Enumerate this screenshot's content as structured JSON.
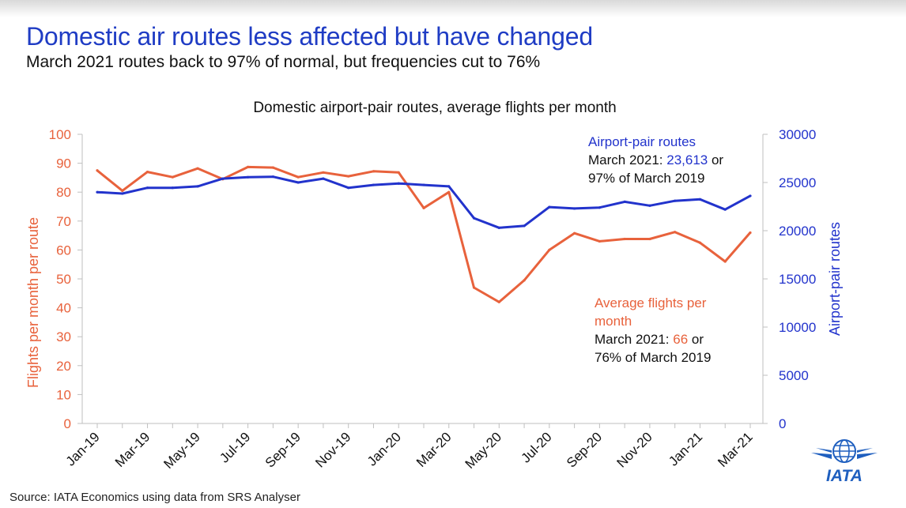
{
  "header": {
    "title": "Domestic air routes less affected but have changed",
    "subtitle": "March 2021 routes back to 97% of normal, but frequencies cut to 76%"
  },
  "footer": {
    "source": "Source: IATA Economics using data from SRS Analyser",
    "logo_text": "IATA"
  },
  "colors": {
    "title": "#1f3cc4",
    "flights": "#e8623c",
    "routes": "#2233cc"
  },
  "chart_data": {
    "type": "line",
    "title": "Domestic airport-pair routes, average flights per month",
    "categories": [
      "Jan-19",
      "Feb-19",
      "Mar-19",
      "Apr-19",
      "May-19",
      "Jun-19",
      "Jul-19",
      "Aug-19",
      "Sep-19",
      "Oct-19",
      "Nov-19",
      "Dec-19",
      "Jan-20",
      "Feb-20",
      "Mar-20",
      "Apr-20",
      "May-20",
      "Jun-20",
      "Jul-20",
      "Aug-20",
      "Sep-20",
      "Oct-20",
      "Nov-20",
      "Dec-20",
      "Jan-21",
      "Feb-21",
      "Mar-21"
    ],
    "tick_labels": [
      "Jan-19",
      "Mar-19",
      "May-19",
      "Jul-19",
      "Sep-19",
      "Nov-19",
      "Jan-20",
      "Mar-20",
      "May-20",
      "Jul-20",
      "Sep-20",
      "Nov-20",
      "Jan-21",
      "Mar-21"
    ],
    "y_left": {
      "label": "Flights per month per route",
      "range": [
        0,
        100
      ],
      "ticks": [
        0,
        10,
        20,
        30,
        40,
        50,
        60,
        70,
        80,
        90,
        100
      ]
    },
    "y_right": {
      "label": "Airport-pair routes",
      "range": [
        0,
        30000
      ],
      "ticks": [
        0,
        5000,
        10000,
        15000,
        20000,
        25000,
        30000
      ],
      "tick_labels": [
        "0",
        "5000",
        "10000",
        "15000",
        "20000",
        "25000",
        "30000"
      ]
    },
    "series": [
      {
        "key": "flights",
        "axis": "left",
        "values": [
          87.5,
          80.5,
          87,
          85.2,
          88.2,
          84.5,
          88.7,
          88.5,
          85.2,
          86.8,
          85.5,
          87.2,
          86.8,
          74.5,
          80,
          47,
          42,
          49.5,
          60,
          65.8,
          63,
          63.8,
          63.8,
          66.2,
          62.5,
          56,
          66
        ]
      },
      {
        "key": "routes",
        "axis": "right",
        "values": [
          24000,
          23850,
          24450,
          24450,
          24600,
          25400,
          25550,
          25600,
          25000,
          25400,
          24450,
          24750,
          24900,
          24750,
          24600,
          21300,
          20300,
          20500,
          22450,
          22300,
          22400,
          23000,
          22600,
          23100,
          23250,
          22200,
          23613
        ]
      }
    ],
    "annotations": {
      "routes": {
        "heading": "Airport-pair routes",
        "line1_prefix": "March 2021: ",
        "line1_value": "23,613",
        "line1_suffix": " or",
        "line2": "97% of March 2019"
      },
      "flights": {
        "heading_line1": "Average flights per",
        "heading_line2": "month",
        "line1_prefix": "March 2021: ",
        "line1_value": "66",
        "line1_suffix": " or",
        "line2": "76% of March 2019"
      }
    }
  }
}
